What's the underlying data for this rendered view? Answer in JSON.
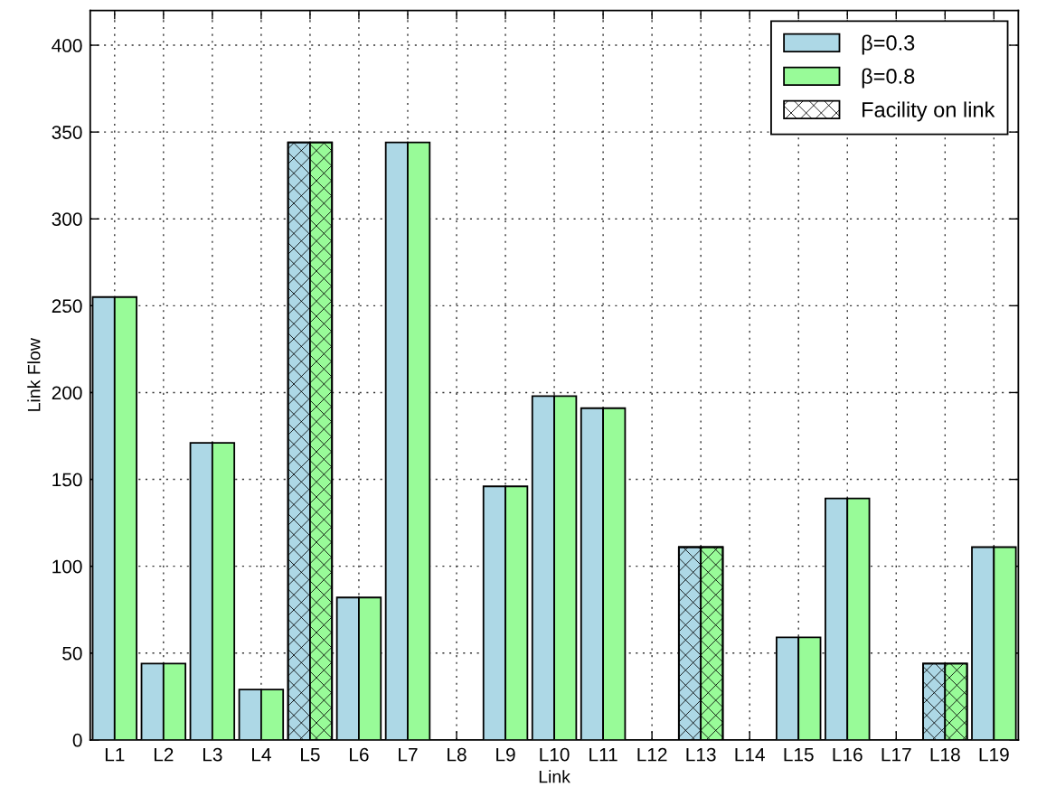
{
  "chart_data": {
    "type": "bar",
    "xlabel": "Link",
    "ylabel": "Link Flow",
    "categories": [
      "L1",
      "L2",
      "L3",
      "L4",
      "L5",
      "L6",
      "L7",
      "L8",
      "L9",
      "L10",
      "L11",
      "L12",
      "L13",
      "L14",
      "L15",
      "L16",
      "L17",
      "L18",
      "L19"
    ],
    "series": [
      {
        "name": "β=0.3",
        "color": "#add8e6",
        "values": [
          255,
          44,
          171,
          29,
          344,
          82,
          344,
          null,
          146,
          198,
          191,
          null,
          111,
          null,
          59,
          139,
          null,
          44,
          111
        ]
      },
      {
        "name": "β=0.8",
        "color": "#98fb98",
        "values": [
          255,
          44,
          171,
          29,
          344,
          82,
          344,
          null,
          146,
          198,
          191,
          null,
          111,
          null,
          59,
          139,
          null,
          44,
          111
        ]
      },
      {
        "name": "Facility on link",
        "type": "bar",
        "color": "#000000",
        "values": [
          null,
          null,
          null,
          null,
          344,
          null,
          null,
          null,
          null,
          null,
          null,
          null,
          111,
          null,
          null,
          null,
          null,
          44,
          null
        ]
      }
    ],
    "ylim": [
      0,
      420
    ],
    "yticks": [
      0,
      50,
      100,
      150,
      200,
      250,
      300,
      350,
      400
    ],
    "grid": true,
    "legend": "top right"
  }
}
